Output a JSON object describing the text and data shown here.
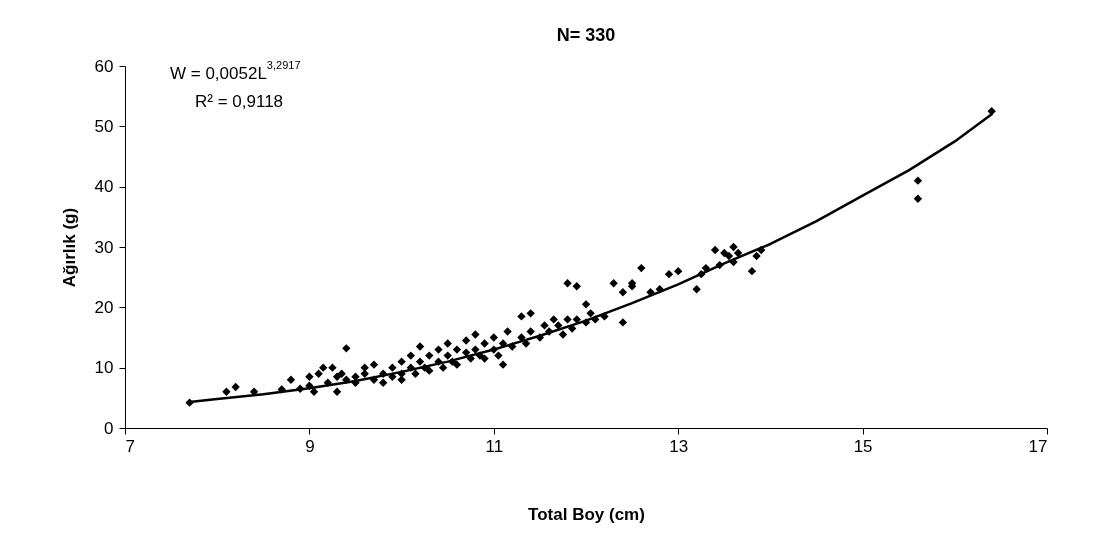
{
  "chart_data": {
    "type": "scatter",
    "title": "N= 330",
    "xlabel": "Total Boy (cm)",
    "ylabel": "Ağırlık (g)",
    "annotations": [
      "W = 0,0052L$^{3,2917}$",
      "R² = 0,9118"
    ],
    "xlim": [
      7,
      17
    ],
    "xticks": [
      7,
      9,
      11,
      13,
      15,
      17
    ],
    "ylim": [
      0,
      60
    ],
    "yticks": [
      0,
      10,
      20,
      30,
      40,
      50,
      60
    ],
    "marker": "diamond",
    "series": [
      {
        "color": "#000000",
        "x": [
          7.7,
          8.1,
          8.2,
          8.4,
          8.7,
          8.8,
          8.9,
          9.0,
          9.0,
          9.05,
          9.1,
          9.15,
          9.2,
          9.25,
          9.3,
          9.3,
          9.35,
          9.4,
          9.4,
          9.5,
          9.5,
          9.6,
          9.6,
          9.7,
          9.7,
          9.8,
          9.8,
          9.9,
          9.9,
          10.0,
          10.0,
          10.0,
          10.1,
          10.1,
          10.15,
          10.2,
          10.2,
          10.25,
          10.3,
          10.3,
          10.4,
          10.4,
          10.45,
          10.5,
          10.5,
          10.55,
          10.6,
          10.6,
          10.7,
          10.7,
          10.75,
          10.8,
          10.8,
          10.85,
          10.9,
          10.9,
          11.0,
          11.0,
          11.05,
          11.1,
          11.1,
          11.15,
          11.2,
          11.3,
          11.3,
          11.35,
          11.4,
          11.4,
          11.5,
          11.55,
          11.6,
          11.65,
          11.7,
          11.75,
          11.8,
          11.8,
          11.85,
          11.9,
          11.9,
          12.0,
          12.0,
          12.05,
          12.1,
          12.2,
          12.3,
          12.4,
          12.4,
          12.5,
          12.5,
          12.6,
          12.7,
          12.8,
          12.9,
          13.0,
          13.2,
          13.25,
          13.3,
          13.4,
          13.45,
          13.5,
          13.55,
          13.6,
          13.6,
          13.65,
          13.8,
          13.85,
          13.9,
          15.6,
          15.6,
          16.4
        ],
        "values": [
          4.2,
          6,
          6.8,
          6,
          6.4,
          8,
          6.5,
          7,
          8.5,
          6,
          9,
          10,
          7.5,
          10,
          6,
          8.5,
          9,
          13.2,
          8,
          8.5,
          7.5,
          9,
          10,
          8,
          10.5,
          9,
          7.5,
          10,
          8.5,
          9,
          11,
          8,
          10,
          12,
          9,
          11,
          13.5,
          10,
          12,
          9.5,
          11,
          13,
          10,
          12,
          14,
          11,
          13,
          10.5,
          12.5,
          14.5,
          11.5,
          13,
          15.5,
          12,
          14,
          11.5,
          13,
          15,
          12,
          10.5,
          14,
          16,
          13.5,
          15,
          18.5,
          14,
          16,
          19,
          15,
          17,
          16,
          18,
          17,
          15.5,
          24,
          18,
          16.5,
          23.5,
          18,
          20.5,
          17.5,
          19,
          18,
          18.5,
          24,
          22.5,
          17.5,
          24,
          23.5,
          26.5,
          22.5,
          23,
          25.5,
          26,
          23,
          25.5,
          26.5,
          29.5,
          27,
          29,
          28.5,
          30,
          27.5,
          29,
          26,
          28.5,
          29.5,
          41,
          38,
          52.5
        ]
      },
      {
        "type": "line",
        "color": "#000000",
        "line_style": "solid",
        "marker": "none",
        "x": [
          7.7,
          8,
          8.5,
          9,
          9.5,
          10,
          10.5,
          11,
          11.5,
          12,
          12.5,
          13,
          13.5,
          14,
          14.5,
          15,
          15.5,
          16,
          16.4
        ],
        "values": [
          4.3,
          4.8,
          5.6,
          6.6,
          7.8,
          9.3,
          11,
          13,
          15.3,
          17.8,
          20.7,
          23.8,
          27.3,
          30.5,
          34.3,
          38.5,
          42.7,
          47.5,
          52
        ]
      }
    ]
  }
}
